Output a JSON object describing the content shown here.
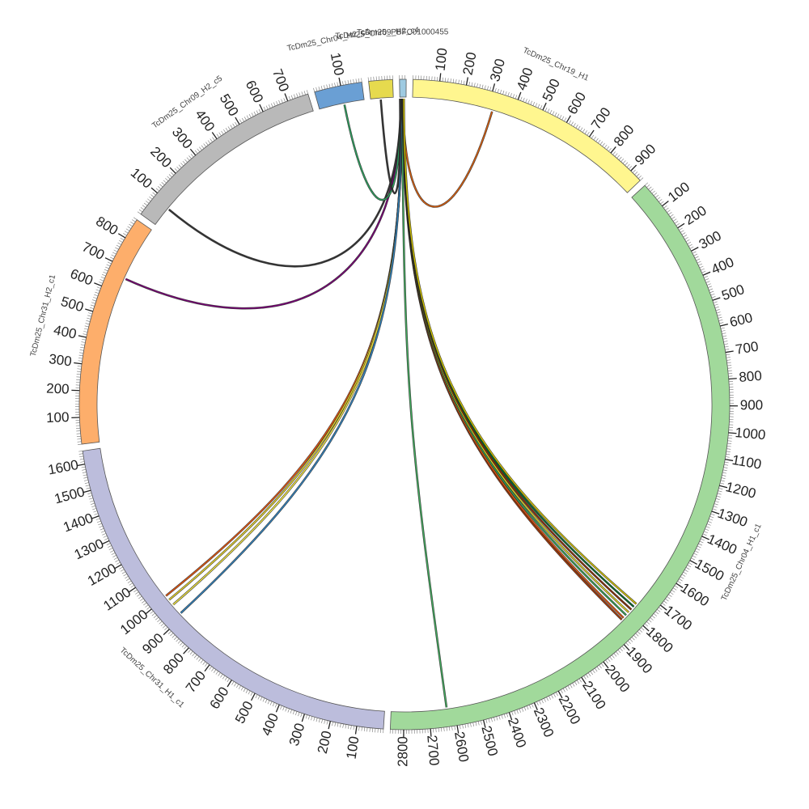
{
  "segments": [
    {
      "name": "TcDm25_Chr19_H1",
      "length": 950,
      "color": "#fff68f",
      "tick_step": 100
    },
    {
      "name": "TcDm25_Chr04_H1_c1",
      "length": 2850,
      "color": "#a1d99b",
      "tick_step": 100
    },
    {
      "name": "TcDm25_Chr31_H1_c1",
      "length": 1650,
      "color": "#bcbddc",
      "tick_step": 100
    },
    {
      "name": "TcDm25_Chr31_H2_c1",
      "length": 880,
      "color": "#fdae6b",
      "tick_step": 100
    },
    {
      "name": "TcDm25_Chr09_H2_c5",
      "length": 780,
      "color": "#b9b9b9",
      "tick_step": 100
    },
    {
      "name": "TcDm25_Chr04_H2_c4",
      "length": 180,
      "color": "#6a9fd4",
      "tick_step": 100
    },
    {
      "name": "TcDm25_Chr09_H2_c4",
      "length": 90,
      "color": "#e6da4e",
      "tick_step": 100
    },
    {
      "name": "TcDm25_PBFC01000455",
      "length": 25,
      "color": "#9ecae1",
      "tick_step": 100
    }
  ],
  "links": [
    {
      "from": [
        "TcDm25_PBFC01000455",
        12
      ],
      "to": [
        "TcDm25_Chr19_H1",
        320
      ],
      "color": "#d95f0e"
    },
    {
      "from": [
        "TcDm25_PBFC01000455",
        10
      ],
      "to": [
        "TcDm25_Chr04_H1_c1",
        1840
      ],
      "color": "#a63603"
    },
    {
      "from": [
        "TcDm25_PBFC01000455",
        11
      ],
      "to": [
        "TcDm25_Chr04_H1_c1",
        1830
      ],
      "color": "#e6550d"
    },
    {
      "from": [
        "TcDm25_PBFC01000455",
        12
      ],
      "to": [
        "TcDm25_Chr04_H1_c1",
        1815
      ],
      "color": "#31a354"
    },
    {
      "from": [
        "TcDm25_PBFC01000455",
        13
      ],
      "to": [
        "TcDm25_Chr04_H1_c1",
        1800
      ],
      "color": "#dfd320"
    },
    {
      "from": [
        "TcDm25_PBFC01000455",
        14
      ],
      "to": [
        "TcDm25_Chr04_H1_c1",
        1785
      ],
      "color": "#8c2d04"
    },
    {
      "from": [
        "TcDm25_PBFC01000455",
        15
      ],
      "to": [
        "TcDm25_Chr04_H1_c1",
        1770
      ],
      "color": "#006d2c"
    },
    {
      "from": [
        "TcDm25_PBFC01000455",
        16
      ],
      "to": [
        "TcDm25_Chr04_H1_c1",
        1755
      ],
      "color": "#d4c400"
    },
    {
      "from": [
        "TcDm25_PBFC01000455",
        9
      ],
      "to": [
        "TcDm25_Chr04_H1_c1",
        2630
      ],
      "color": "#41ab5d"
    },
    {
      "from": [
        "TcDm25_PBFC01000455",
        8
      ],
      "to": [
        "TcDm25_Chr31_H1_c1",
        1005
      ],
      "color": "#e6550d"
    },
    {
      "from": [
        "TcDm25_PBFC01000455",
        7
      ],
      "to": [
        "TcDm25_Chr31_H1_c1",
        985
      ],
      "color": "#e6d32a"
    },
    {
      "from": [
        "TcDm25_PBFC01000455",
        6
      ],
      "to": [
        "TcDm25_Chr31_H1_c1",
        960
      ],
      "color": "#f0e442"
    },
    {
      "from": [
        "TcDm25_PBFC01000455",
        5
      ],
      "to": [
        "TcDm25_Chr31_H1_c1",
        915
      ],
      "color": "#3182bd"
    },
    {
      "from": [
        "TcDm25_PBFC01000455",
        4
      ],
      "to": [
        "TcDm25_Chr31_H2_c1",
        660
      ],
      "color": "#7a0177"
    },
    {
      "from": [
        "TcDm25_PBFC01000455",
        3
      ],
      "to": [
        "TcDm25_Chr09_H2_c5",
        80
      ],
      "color": "#333333"
    },
    {
      "from": [
        "TcDm25_PBFC01000455",
        2
      ],
      "to": [
        "TcDm25_Chr04_H2_c4",
        100
      ],
      "color": "#2ca25f"
    },
    {
      "from": [
        "TcDm25_PBFC01000455",
        1
      ],
      "to": [
        "TcDm25_Chr09_H2_c4",
        40
      ],
      "color": "#333333"
    }
  ]
}
